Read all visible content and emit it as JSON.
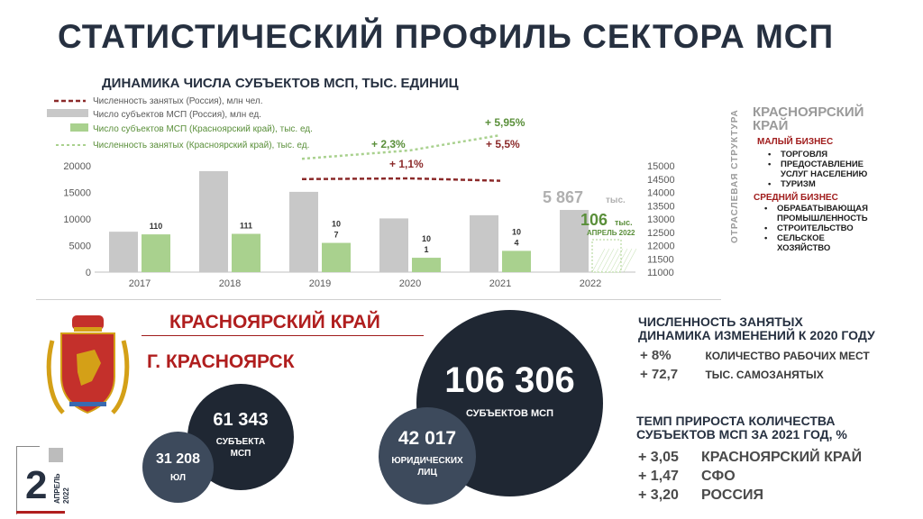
{
  "main_title": "СТАТИСТИЧЕСКИЙ ПРОФИЛЬ СЕКТОРА МСП",
  "chart_data": {
    "type": "bar",
    "title": "ДИНАМИКА ЧИСЛА СУБЪЕКТОВ МСП, ТЫС. ЕДИНИЦ",
    "categories": [
      "2017",
      "2018",
      "2019",
      "2020",
      "2021",
      "2022"
    ],
    "ylim": [
      0,
      20000
    ],
    "y_ticks": [
      "0",
      "5000",
      "10000",
      "15000",
      "20000"
    ],
    "y2lim": [
      11000,
      15000
    ],
    "y2_ticks": [
      "11000",
      "11500",
      "12000",
      "12500",
      "13000",
      "13500",
      "14000",
      "14500",
      "15000"
    ],
    "legend": [
      "Численность занятых (Россия), млн чел.",
      "Число субъектов МСП (Россия), млн ед.",
      "Число субъектов МСП (Красноярский край), тыс. ед.",
      "Численность занятых (Красноярский край), тыс. ед."
    ],
    "series": [
      {
        "name": "Число субъектов МСП (Россия), млн ед.",
        "color": "#c8c8c8",
        "values": [
          7600,
          19000,
          15100,
          10100,
          10700,
          11700
        ]
      },
      {
        "name": "Число субъектов МСП (Красноярский край), тыс. ед.",
        "color": "#a9d18e",
        "values": [
          7100,
          7200,
          5500,
          2700,
          4000,
          6100
        ]
      },
      {
        "name": "Численность занятых (Россия), млн чел.",
        "color": "#8b2a2a",
        "x": [
          "2019",
          "2020",
          "2021"
        ],
        "values": [
          14700,
          14720,
          14650
        ]
      },
      {
        "name": "Численность занятых (Красноярский край), тыс. ед.",
        "color": "#a9d18e",
        "x": [
          "2019",
          "2020",
          "2021"
        ],
        "values": [
          15300,
          15550,
          16000
        ]
      }
    ],
    "bar_labels": [
      "110",
      "111",
      "10\n7",
      "10\n1",
      "10\n4",
      "106"
    ],
    "annotations": {
      "g1": "+ 2,3%",
      "g2": "+ 5,95%",
      "r1": "+ 1,1%",
      "r2": "+ 5,5%",
      "russia_2022_value": "5 867",
      "russia_2022_unit": "тыс.",
      "region_2022_value": "106",
      "region_2022_unit": "тыс.",
      "region_2022_date": "АПРЕЛЬ 2022"
    }
  },
  "side": {
    "vertical_label": "ОТРАСЛЕВАЯ СТРУКТУРА",
    "region_line1": "КРАСНОЯРСКИЙ",
    "region_line2": "КРАЙ",
    "small_head": "МАЛЫЙ БИЗНЕС",
    "small_items": [
      "ТОРГОВЛЯ",
      "ПРЕДОСТАВЛЕНИЕ УСЛУГ НАСЕЛЕНИЮ",
      "ТУРИЗМ"
    ],
    "mid_head": "СРЕДНИЙ БИЗНЕС",
    "mid_items": [
      "ОБРАБАТЫВАЮЩАЯ ПРОМЫШЛЕННОСТЬ",
      "СТРОИТЕЛЬСТВО",
      "СЕЛЬСКОЕ ХОЗЯЙСТВО"
    ]
  },
  "bottom_left": {
    "region_title": "КРАСНОЯРСКИЙ КРАЙ",
    "city_title": "Г. КРАСНОЯРСК",
    "city_total_value": "61 343",
    "city_total_label": "СУБЪЕКТА МСП",
    "city_legal_value": "31 208",
    "city_legal_label": "ЮЛ",
    "region_total_value": "106 306",
    "region_total_label": "СУБЪЕКТОВ МСП",
    "region_legal_value": "42 017",
    "region_legal_label": "ЮРИДИЧЕСКИХ ЛИЦ",
    "page_number": "2",
    "page_month": "АПРЕЛЬ",
    "page_year": "2022"
  },
  "employment": {
    "head1": "ЧИСЛЕННОСТЬ ЗАНЯТЫХ",
    "head2": "ДИНАМИКА ИЗМЕНЕНИЙ К 2020 ГОДУ",
    "rows": [
      {
        "value": "+ 8%",
        "label": "КОЛИЧЕСТВО РАБОЧИХ МЕСТ"
      },
      {
        "value": "+ 72,7",
        "label": "ТЫС. САМОЗАНЯТЫХ"
      }
    ]
  },
  "growth": {
    "head1": "ТЕМП ПРИРОСТА КОЛИЧЕСТВА",
    "head2": "СУБЪЕКТОВ МСП ЗА 2021 ГОД, %",
    "rows": [
      {
        "value": "+ 3,05",
        "label": "КРАСНОЯРСКИЙ КРАЙ"
      },
      {
        "value": "+ 1,47",
        "label": "СФО"
      },
      {
        "value": "+ 3,20",
        "label": "РОССИЯ"
      }
    ]
  },
  "colors": {
    "navy": "#263040",
    "red": "#b01e1e",
    "gray_bar": "#c8c8c8",
    "green_bar": "#a9d18e",
    "dark_circle": "#1f2733",
    "slate_circle": "#3d4a5c"
  }
}
